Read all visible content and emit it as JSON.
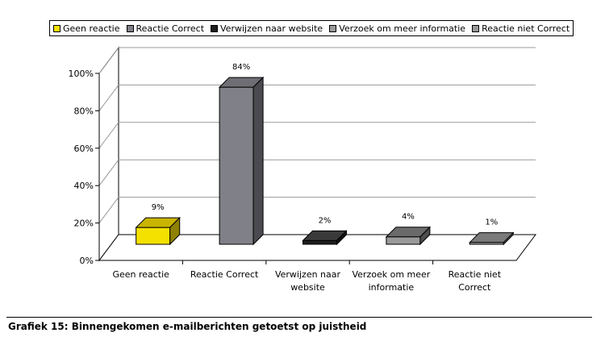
{
  "caption": "Grafiek 15: Binnengekomen e-mailberichten getoetst op juistheid",
  "chart_data": {
    "type": "bar",
    "title": "",
    "xlabel": "",
    "ylabel": "",
    "ylim": [
      0,
      100
    ],
    "y_ticks": [
      "0%",
      "20%",
      "40%",
      "60%",
      "80%",
      "100%"
    ],
    "grid": true,
    "legend_position": "top",
    "categories": [
      [
        "Geen reactie"
      ],
      [
        "Reactie Correct"
      ],
      [
        "Verwijzen naar",
        "website"
      ],
      [
        "Verzoek om meer",
        "informatie"
      ],
      [
        "Reactie niet",
        "Correct"
      ]
    ],
    "values": [
      9,
      84,
      2,
      4,
      1
    ],
    "data_labels": [
      "9%",
      "84%",
      "2%",
      "4%",
      "1%"
    ],
    "legend": [
      {
        "label": "Geen reactie",
        "color": "#f5e100"
      },
      {
        "label": "Reactie Correct",
        "color": "#808088"
      },
      {
        "label": "Verwijzen naar website",
        "color": "#1e1e1e"
      },
      {
        "label": "Verzoek om meer informatie",
        "color": "#9a9a9a"
      },
      {
        "label": "Reactie niet Correct",
        "color": "#9a9a9a"
      }
    ],
    "bar_colors": {
      "front": [
        "#f5e100",
        "#808088",
        "#1e1e1e",
        "#9a9a9a",
        "#9a9a9a"
      ],
      "top": [
        "#c9b500",
        "#6e6e74",
        "#3a3a3a",
        "#6a6a6a",
        "#7a7a7a"
      ],
      "side": [
        "#8f8100",
        "#4a4a50",
        "#101010",
        "#4c4c4c",
        "#5a5a5a"
      ]
    }
  }
}
